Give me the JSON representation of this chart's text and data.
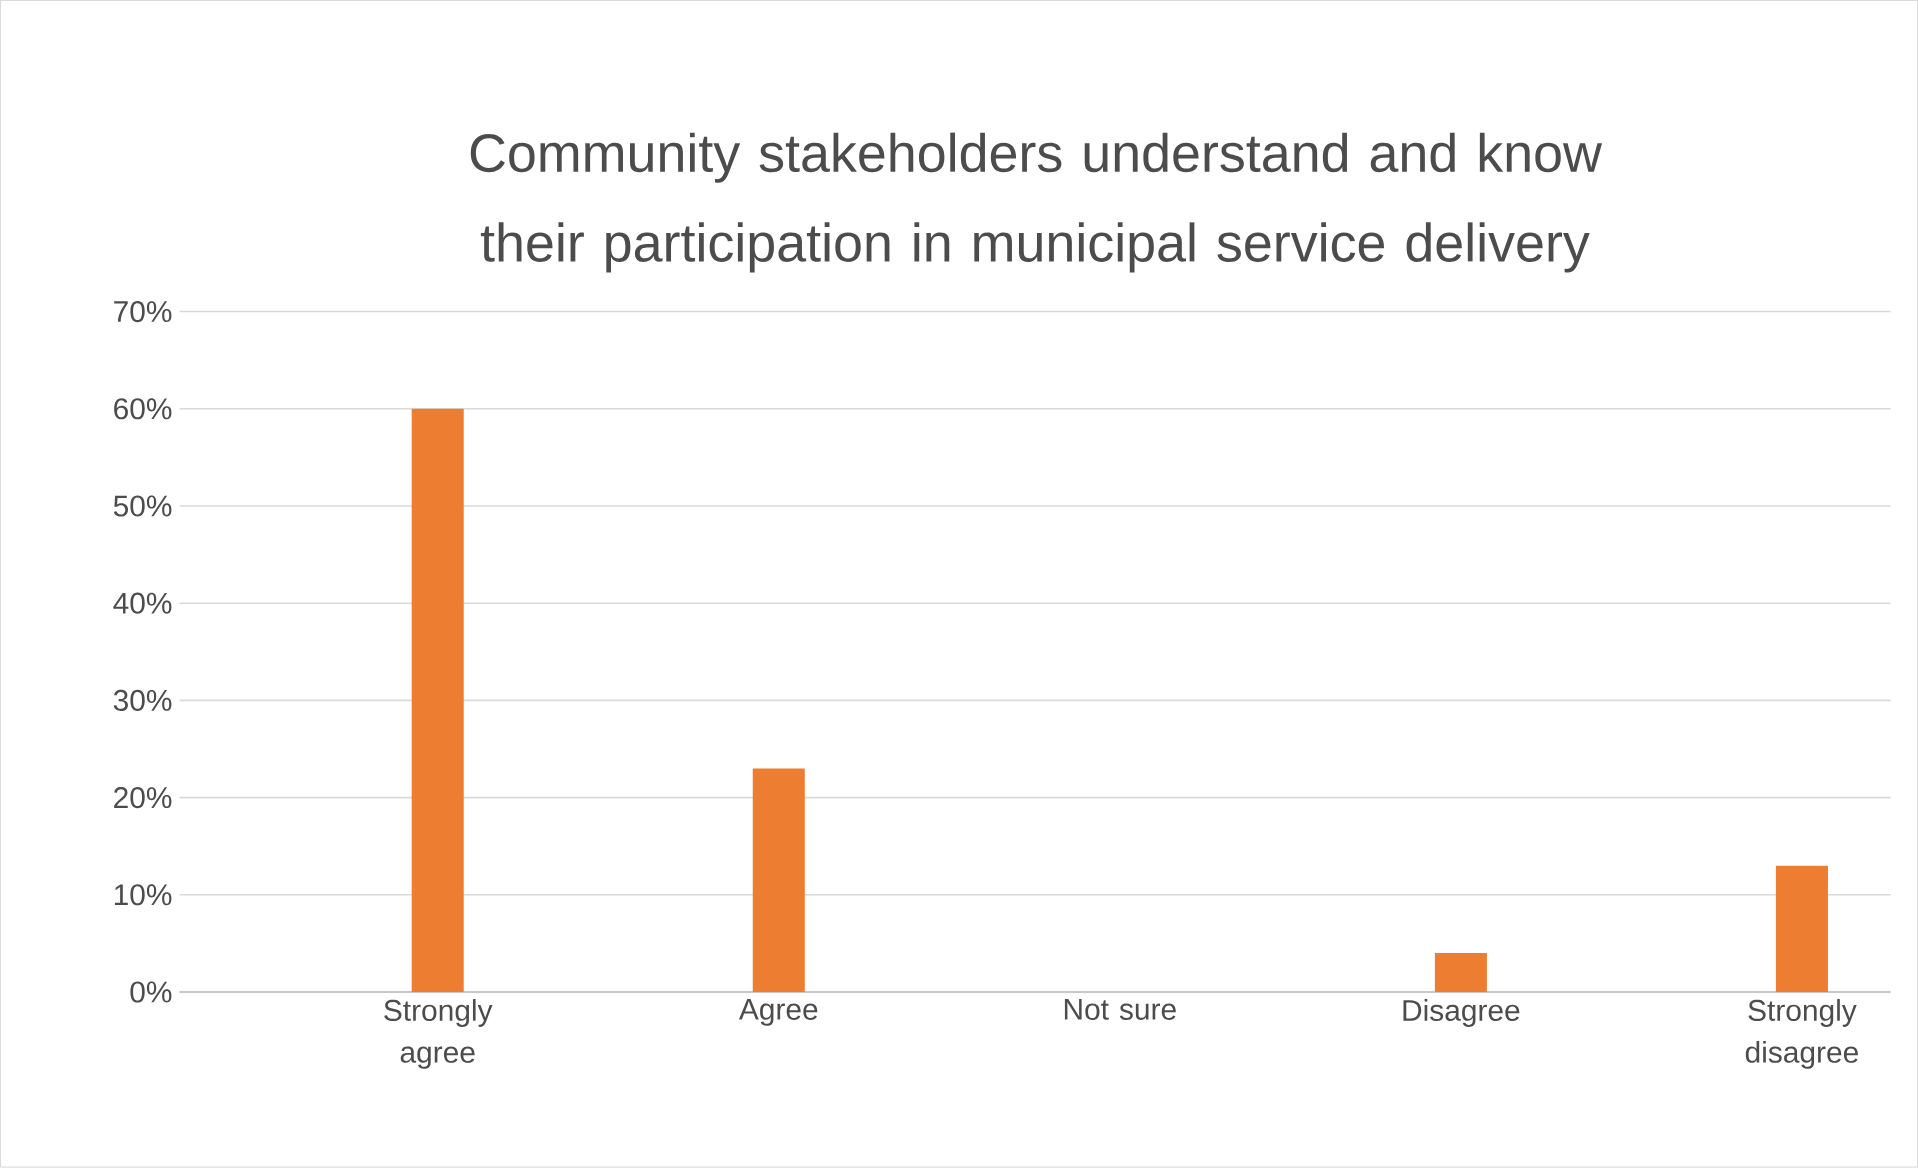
{
  "chart_data": {
    "type": "bar",
    "title": "Community stakeholders understand and know their participation in municipal service delivery",
    "categories": [
      "Strongly agree",
      "Agree",
      "Not sure",
      "Disagree",
      "Strongly disagree"
    ],
    "values": [
      60,
      23,
      0,
      4,
      13
    ],
    "color": "#ed7d31",
    "ylim": [
      0,
      70
    ],
    "yticks": [
      {
        "value": 0,
        "label": "0%"
      },
      {
        "value": 10,
        "label": "10%"
      },
      {
        "value": 20,
        "label": "20%"
      },
      {
        "value": 30,
        "label": "30%"
      },
      {
        "value": 40,
        "label": "40%"
      },
      {
        "value": 50,
        "label": "50%"
      },
      {
        "value": 60,
        "label": "60%"
      },
      {
        "value": 70,
        "label": "70%"
      }
    ],
    "grid": "y"
  }
}
